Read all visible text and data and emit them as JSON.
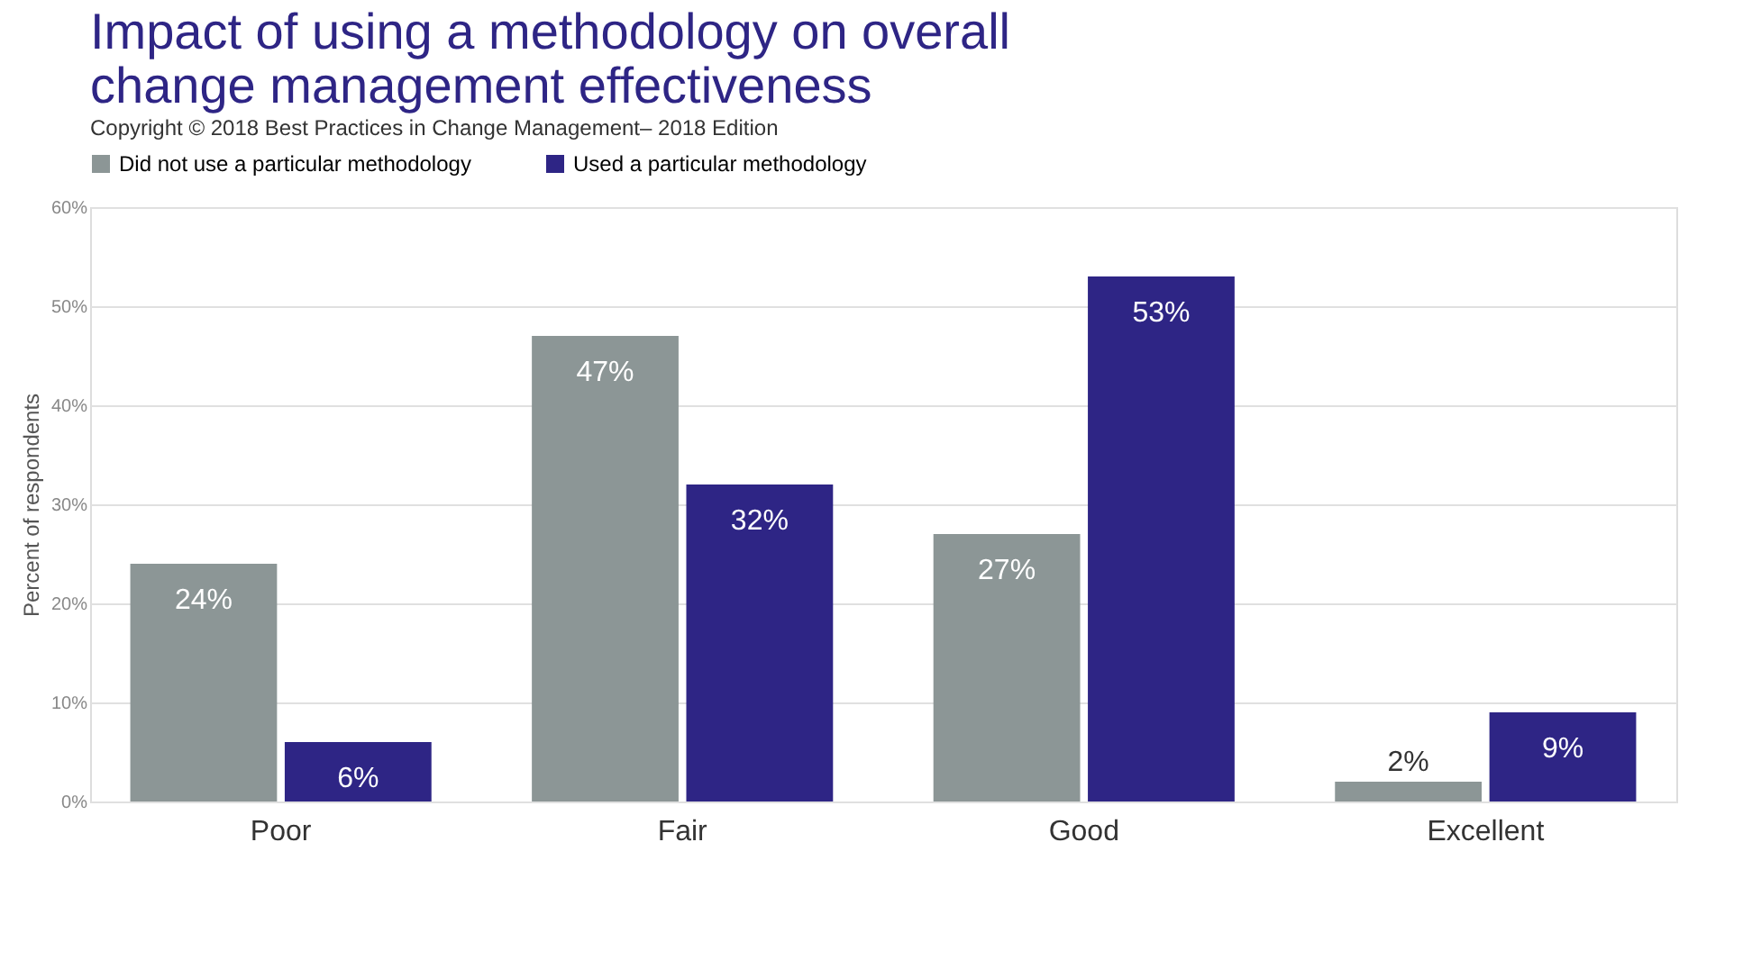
{
  "chart_data": {
    "type": "bar",
    "title": "Impact of using a methodology on overall change management effectiveness",
    "subtitle": "Copyright © 2018 Best Practices in Change Management– 2018 Edition",
    "ylabel": "Percent of respondents",
    "categories": [
      "Poor",
      "Fair",
      "Good",
      "Excellent"
    ],
    "series": [
      {
        "name": "Did not use a particular methodology",
        "color": "#8c9696",
        "values": [
          24,
          47,
          27,
          2
        ],
        "value_labels": [
          "24%",
          "47%",
          "27%",
          "2%"
        ]
      },
      {
        "name": "Used a particular methodology",
        "color": "#2e2585",
        "values": [
          6,
          32,
          53,
          9
        ],
        "value_labels": [
          "6%",
          "32%",
          "53%",
          "9%"
        ]
      }
    ],
    "ylim": [
      0,
      60
    ],
    "yticks": [
      {
        "value": 0,
        "label": "0%"
      },
      {
        "value": 10,
        "label": "10%"
      },
      {
        "value": 20,
        "label": "20%"
      },
      {
        "value": 30,
        "label": "30%"
      },
      {
        "value": 40,
        "label": "40%"
      },
      {
        "value": 50,
        "label": "50%"
      },
      {
        "value": 60,
        "label": "60%"
      }
    ],
    "grid": "y",
    "legend": "top"
  }
}
